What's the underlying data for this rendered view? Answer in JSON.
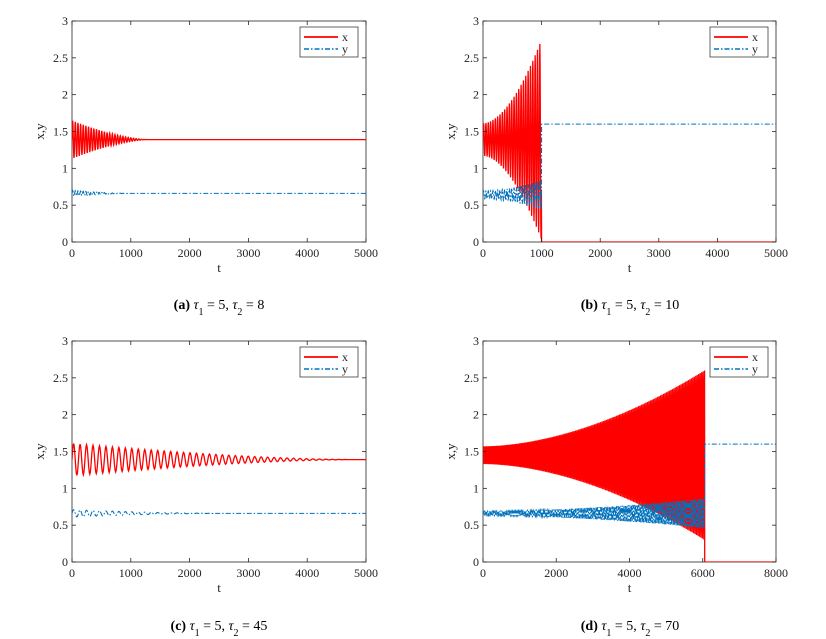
{
  "chart_data": [
    {
      "type": "line",
      "panel": "a",
      "caption": {
        "label": "(a)",
        "tau1": "5",
        "tau2": "8"
      },
      "xlabel": "t",
      "ylabel": "x,y",
      "xlim": [
        0,
        5000
      ],
      "ylim": [
        0,
        3
      ],
      "xticks": [
        0,
        1000,
        2000,
        3000,
        4000,
        5000
      ],
      "yticks": [
        0,
        0.5,
        1,
        1.5,
        2,
        2.5,
        3
      ],
      "ytick_labels": [
        "0",
        "0.5",
        "1",
        "1.5",
        "2",
        "2.5",
        "3"
      ],
      "legend": {
        "location": "top-right",
        "entries": [
          "x",
          "y"
        ]
      },
      "series": [
        {
          "name": "x",
          "color": "#ff0000",
          "style": "solid",
          "kind": "damped",
          "center": 1.39,
          "amp0": 0.26,
          "decay_end": 1300,
          "period": 45,
          "end_t": 5000
        },
        {
          "name": "y",
          "color": "#0072bd",
          "style": "dashdot",
          "kind": "damped",
          "center": 0.66,
          "amp0": 0.04,
          "decay_end": 1000,
          "period": 45,
          "end_t": 5000
        }
      ]
    },
    {
      "type": "line",
      "panel": "b",
      "caption": {
        "label": "(b)",
        "tau1": "5",
        "tau2": "10"
      },
      "xlabel": "t",
      "ylabel": "x,y",
      "xlim": [
        0,
        5000
      ],
      "ylim": [
        0,
        3
      ],
      "xticks": [
        0,
        1000,
        2000,
        3000,
        4000,
        5000
      ],
      "yticks": [
        0,
        0.5,
        1,
        1.5,
        2,
        2.5,
        3
      ],
      "ytick_labels": [
        "0",
        "0.5",
        "1",
        "1.5",
        "2",
        "2.5",
        "3"
      ],
      "legend": {
        "location": "top-right",
        "entries": [
          "x",
          "y"
        ]
      },
      "series": [
        {
          "name": "x",
          "color": "#ff0000",
          "style": "solid",
          "kind": "grow_collapse",
          "center": 1.39,
          "amp0": 0.22,
          "amp1": 1.36,
          "collapse_t": 1000,
          "after": 0.0,
          "period": 40,
          "end_t": 5000
        },
        {
          "name": "y",
          "color": "#0072bd",
          "style": "dashdot",
          "kind": "grow_collapse",
          "center": 0.64,
          "amp0": 0.05,
          "amp1": 0.2,
          "collapse_t": 1000,
          "after": 1.6,
          "period": 40,
          "end_t": 5000
        }
      ]
    },
    {
      "type": "line",
      "panel": "c",
      "caption": {
        "label": "(c)",
        "tau1": "5",
        "tau2": "45"
      },
      "xlabel": "t",
      "ylabel": "x,y",
      "xlim": [
        0,
        5000
      ],
      "ylim": [
        0,
        3
      ],
      "xticks": [
        0,
        1000,
        2000,
        3000,
        4000,
        5000
      ],
      "yticks": [
        0,
        0.5,
        1,
        1.5,
        2,
        2.5,
        3
      ],
      "ytick_labels": [
        "0",
        "0.5",
        "1",
        "1.5",
        "2",
        "2.5",
        "3"
      ],
      "legend": {
        "location": "top-right",
        "entries": [
          "x",
          "y"
        ]
      },
      "series": [
        {
          "name": "x",
          "color": "#ff0000",
          "style": "solid",
          "kind": "damped",
          "center": 1.39,
          "amp0": 0.22,
          "decay_end": 4800,
          "period": 110,
          "end_t": 5000
        },
        {
          "name": "y",
          "color": "#0072bd",
          "style": "dashdot",
          "kind": "damped",
          "center": 0.66,
          "amp0": 0.05,
          "decay_end": 2500,
          "period": 110,
          "end_t": 5000
        }
      ]
    },
    {
      "type": "line",
      "panel": "d",
      "caption": {
        "label": "(d)",
        "tau1": "5",
        "tau2": "70"
      },
      "xlabel": "t",
      "ylabel": "x,y",
      "xlim": [
        0,
        8000
      ],
      "ylim": [
        0,
        3
      ],
      "xticks": [
        0,
        2000,
        4000,
        6000,
        8000
      ],
      "yticks": [
        0,
        0.5,
        1,
        1.5,
        2,
        2.5,
        3
      ],
      "ytick_labels": [
        "0",
        "0.5",
        "1",
        "1.5",
        "2",
        "2.5",
        "3"
      ],
      "legend": {
        "location": "top-right",
        "entries": [
          "x",
          "y"
        ]
      },
      "series": [
        {
          "name": "x",
          "color": "#ff0000",
          "style": "solid",
          "kind": "grow_collapse",
          "center": 1.45,
          "amp0": 0.12,
          "amp1": 1.15,
          "collapse_t": 6050,
          "after": 0.0,
          "period": 40,
          "end_t": 8000
        },
        {
          "name": "y",
          "color": "#0072bd",
          "style": "dashdot",
          "kind": "grow_collapse",
          "center": 0.66,
          "amp0": 0.03,
          "amp1": 0.2,
          "collapse_t": 6050,
          "after": 1.6,
          "period": 40,
          "end_t": 8000
        }
      ]
    }
  ]
}
